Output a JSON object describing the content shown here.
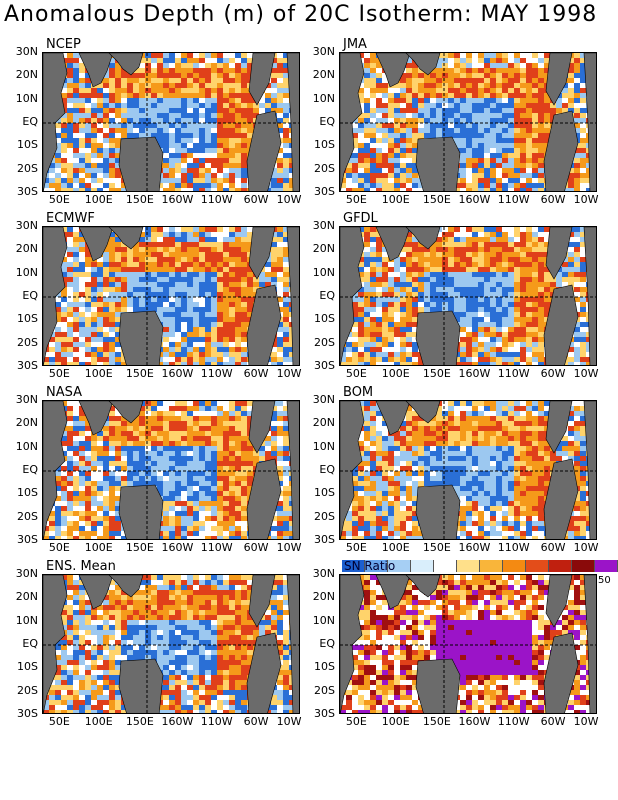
{
  "title": "Anomalous Depth (m) of 20C Isotherm: MAY 1998",
  "lat_labels": [
    "30N",
    "20N",
    "10N",
    "EQ",
    "10S",
    "20S",
    "30S"
  ],
  "lon_labels": [
    "50E",
    "100E",
    "150E",
    "160W",
    "110W",
    "60W",
    "10W"
  ],
  "colors": {
    "land": "#6b6b6b",
    "deep_blue": "#2a6fd6",
    "light_blue": "#9cc8f0",
    "white": "#ffffff",
    "yellow": "#ffd36b",
    "orange": "#f59a1a",
    "red": "#e0401a",
    "purple": "#9b14c8"
  },
  "panels": [
    {
      "name": "NCEP"
    },
    {
      "name": "JMA"
    },
    {
      "name": "ECMWF"
    },
    {
      "name": "GFDL"
    },
    {
      "name": "NASA"
    },
    {
      "name": "BOM"
    },
    {
      "name": "ENS. Mean"
    },
    {
      "name": ""
    }
  ],
  "sn_legend": {
    "label": "SN Ratio",
    "max_label": "50",
    "colors": [
      "#1c5fd0",
      "#6aa6ee",
      "#a6cff4",
      "#d9eefb",
      "#ffffff",
      "#ffe08a",
      "#f9b53a",
      "#f48a12",
      "#e34d1a",
      "#c0200f",
      "#8a0a0a",
      "#9b14c8"
    ]
  },
  "chart_data": {
    "type": "heatmap",
    "title": "Anomalous Depth (m) of 20C Isotherm: MAY 1998",
    "y_ticks": [
      "30N",
      "20N",
      "10N",
      "EQ",
      "10S",
      "20S",
      "30S"
    ],
    "x_ticks": [
      "50E",
      "100E",
      "150E",
      "160W",
      "110W",
      "60W",
      "10W"
    ],
    "ylim": [
      "30S",
      "30N"
    ],
    "maps": [
      "NCEP",
      "JMA",
      "ECMWF",
      "GFDL",
      "NASA",
      "BOM",
      "ENS. Mean",
      "SN Ratio"
    ],
    "colorbar_max": 50
  }
}
